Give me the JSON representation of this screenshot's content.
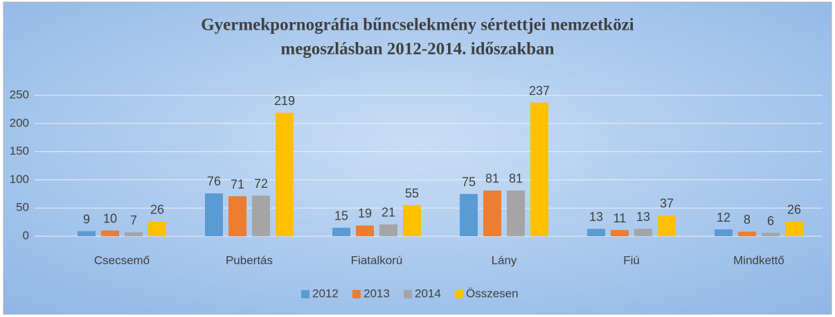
{
  "chart_data": {
    "type": "bar",
    "title": [
      "Gyermekpornográfia bűncselekmény sértettjei nemzetközi",
      "megoszlásban 2012-2014. időszakban"
    ],
    "categories": [
      "Csecsemő",
      "Pubertás",
      "Fiatalkorú",
      "Lány",
      "Fiú",
      "Mindkettő"
    ],
    "series": [
      {
        "name": "2012",
        "color": "#5b9bd5",
        "values": [
          9,
          76,
          15,
          75,
          13,
          12
        ]
      },
      {
        "name": "2013",
        "color": "#ed7d31",
        "values": [
          10,
          71,
          19,
          81,
          11,
          8
        ]
      },
      {
        "name": "2014",
        "color": "#a5a5a5",
        "values": [
          7,
          72,
          21,
          81,
          13,
          6
        ]
      },
      {
        "name": "Összesen",
        "color": "#ffc000",
        "values": [
          26,
          219,
          55,
          237,
          37,
          26
        ]
      }
    ],
    "ylim": [
      0,
      250
    ],
    "yticks": [
      0,
      50,
      100,
      150,
      200,
      250
    ],
    "grid": true,
    "legend": "bottom"
  }
}
